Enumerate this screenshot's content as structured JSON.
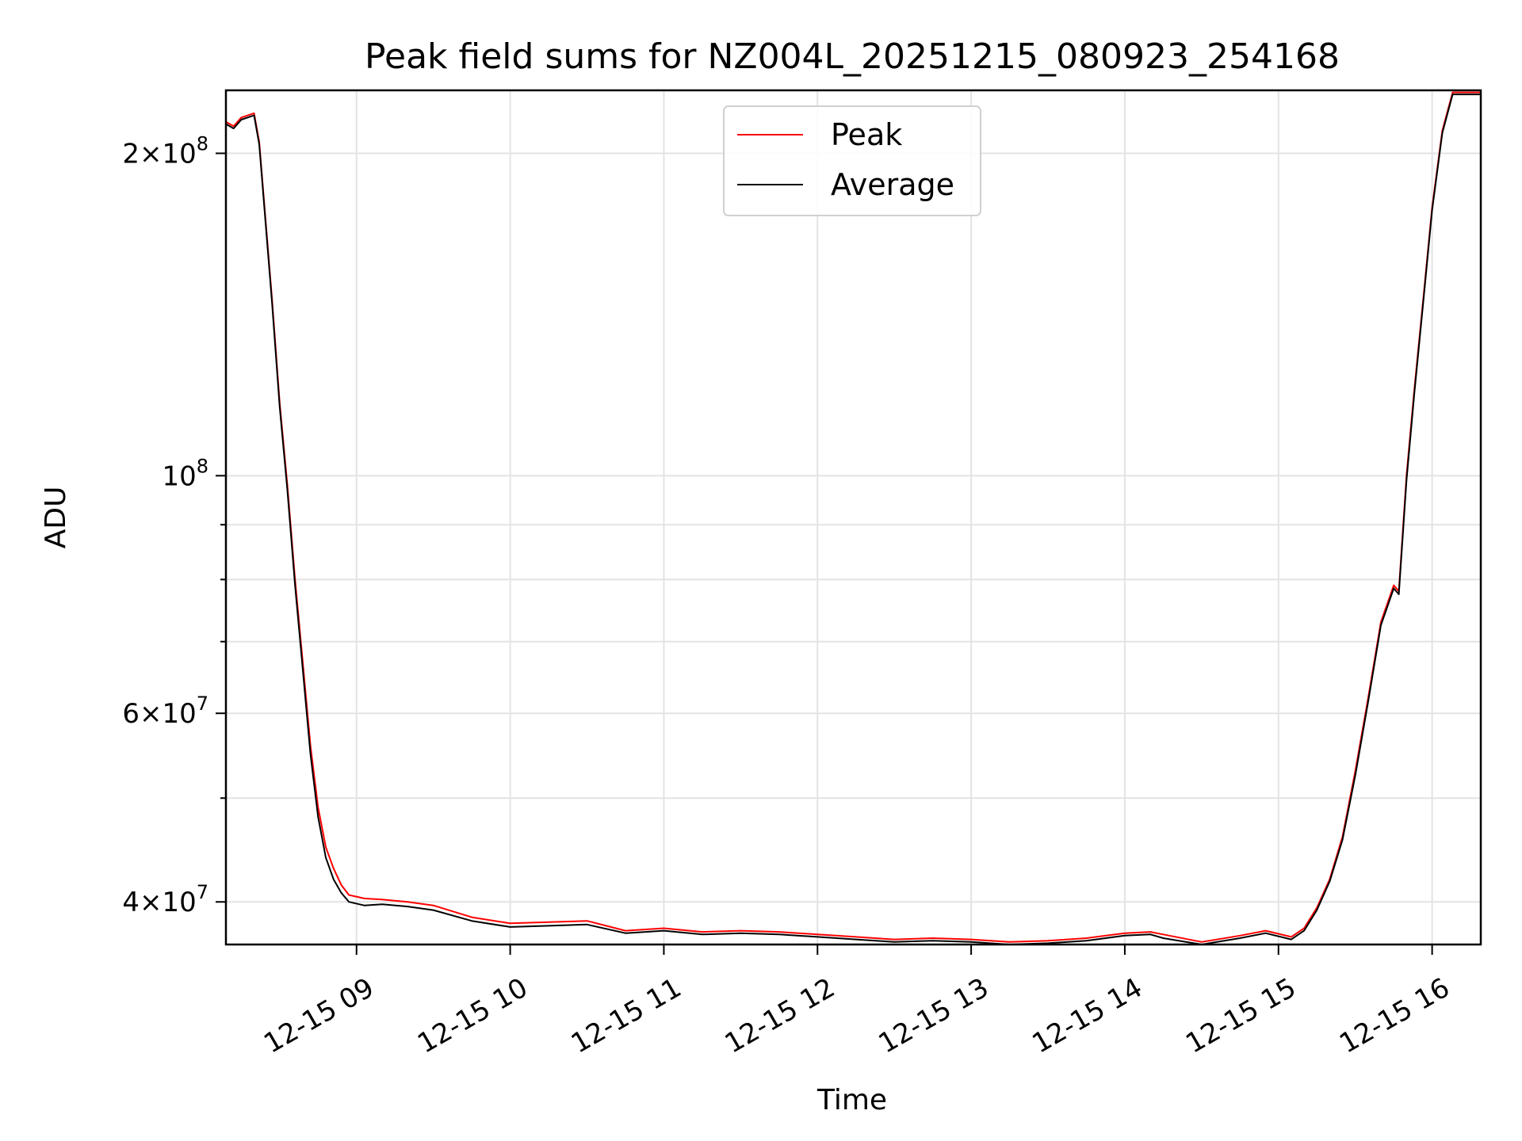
{
  "chart_data": {
    "type": "line",
    "title": "Peak field sums for NZ004L_20251215_080923_254168",
    "xlabel": "Time",
    "ylabel": "ADU",
    "yscale": "log",
    "grid": true,
    "legend_position": "upper-center",
    "xlim": [
      "2025-12-15 08:09",
      "2025-12-15 16:19"
    ],
    "ylim": [
      36500000,
      229000000
    ],
    "x_ticks": [
      {
        "value": "2025-12-15 09:00",
        "label": "12-15 09"
      },
      {
        "value": "2025-12-15 10:00",
        "label": "12-15 10"
      },
      {
        "value": "2025-12-15 11:00",
        "label": "12-15 11"
      },
      {
        "value": "2025-12-15 12:00",
        "label": "12-15 12"
      },
      {
        "value": "2025-12-15 13:00",
        "label": "12-15 13"
      },
      {
        "value": "2025-12-15 14:00",
        "label": "12-15 14"
      },
      {
        "value": "2025-12-15 15:00",
        "label": "12-15 15"
      },
      {
        "value": "2025-12-15 16:00",
        "label": "12-15 16"
      }
    ],
    "y_major_ticks": [
      {
        "value": 40000000,
        "coef": "4",
        "exp": "7"
      },
      {
        "value": 60000000,
        "coef": "6",
        "exp": "7"
      },
      {
        "value": 100000000,
        "coef": "",
        "exp": "8"
      },
      {
        "value": 200000000,
        "coef": "2",
        "exp": "8"
      }
    ],
    "y_minor_ticks": [
      50000000,
      70000000,
      80000000,
      90000000
    ],
    "series": [
      {
        "name": "Peak",
        "color": "#ff0000",
        "x": [
          "2025-12-15 08:09",
          "2025-12-15 08:12",
          "2025-12-15 08:15",
          "2025-12-15 08:20",
          "2025-12-15 08:22",
          "2025-12-15 08:27",
          "2025-12-15 08:30",
          "2025-12-15 08:33",
          "2025-12-15 08:36",
          "2025-12-15 08:39",
          "2025-12-15 08:42",
          "2025-12-15 08:45",
          "2025-12-15 08:48",
          "2025-12-15 08:51",
          "2025-12-15 08:54",
          "2025-12-15 08:57",
          "2025-12-15 09:03",
          "2025-12-15 09:10",
          "2025-12-15 09:20",
          "2025-12-15 09:30",
          "2025-12-15 09:45",
          "2025-12-15 10:00",
          "2025-12-15 10:15",
          "2025-12-15 10:30",
          "2025-12-15 10:45",
          "2025-12-15 11:00",
          "2025-12-15 11:15",
          "2025-12-15 11:30",
          "2025-12-15 11:45",
          "2025-12-15 12:00",
          "2025-12-15 12:15",
          "2025-12-15 12:30",
          "2025-12-15 12:45",
          "2025-12-15 13:00",
          "2025-12-15 13:15",
          "2025-12-15 13:30",
          "2025-12-15 13:45",
          "2025-12-15 14:00",
          "2025-12-15 14:10",
          "2025-12-15 14:15",
          "2025-12-15 14:30",
          "2025-12-15 14:45",
          "2025-12-15 14:55",
          "2025-12-15 15:05",
          "2025-12-15 15:10",
          "2025-12-15 15:15",
          "2025-12-15 15:20",
          "2025-12-15 15:25",
          "2025-12-15 15:30",
          "2025-12-15 15:35",
          "2025-12-15 15:40",
          "2025-12-15 15:45",
          "2025-12-15 15:47",
          "2025-12-15 15:50",
          "2025-12-15 15:53",
          "2025-12-15 15:57",
          "2025-12-15 16:00",
          "2025-12-15 16:04",
          "2025-12-15 16:08",
          "2025-12-15 16:19"
        ],
        "values": [
          214000000,
          212000000,
          216000000,
          218000000,
          205000000,
          146000000,
          117000000,
          98000000,
          80000000,
          67000000,
          56000000,
          49000000,
          45000000,
          43000000,
          41500000,
          40600000,
          40300000,
          40200000,
          40000000,
          39700000,
          38700000,
          38200000,
          38300000,
          38400000,
          37600000,
          37800000,
          37500000,
          37600000,
          37500000,
          37300000,
          37100000,
          36900000,
          37000000,
          36900000,
          36700000,
          36800000,
          37000000,
          37400000,
          37500000,
          37300000,
          36700000,
          37200000,
          37600000,
          37100000,
          37800000,
          39500000,
          42000000,
          46000000,
          53000000,
          62000000,
          73000000,
          79000000,
          78000000,
          100000000,
          120000000,
          150000000,
          178000000,
          210000000,
          228000000,
          228000000
        ]
      },
      {
        "name": "Average",
        "color": "#000000",
        "x": [
          "2025-12-15 08:09",
          "2025-12-15 08:12",
          "2025-12-15 08:15",
          "2025-12-15 08:20",
          "2025-12-15 08:22",
          "2025-12-15 08:27",
          "2025-12-15 08:30",
          "2025-12-15 08:33",
          "2025-12-15 08:36",
          "2025-12-15 08:39",
          "2025-12-15 08:42",
          "2025-12-15 08:45",
          "2025-12-15 08:48",
          "2025-12-15 08:51",
          "2025-12-15 08:54",
          "2025-12-15 08:57",
          "2025-12-15 09:03",
          "2025-12-15 09:10",
          "2025-12-15 09:20",
          "2025-12-15 09:30",
          "2025-12-15 09:45",
          "2025-12-15 10:00",
          "2025-12-15 10:15",
          "2025-12-15 10:30",
          "2025-12-15 10:45",
          "2025-12-15 11:00",
          "2025-12-15 11:15",
          "2025-12-15 11:30",
          "2025-12-15 11:45",
          "2025-12-15 12:00",
          "2025-12-15 12:15",
          "2025-12-15 12:30",
          "2025-12-15 12:45",
          "2025-12-15 13:00",
          "2025-12-15 13:15",
          "2025-12-15 13:30",
          "2025-12-15 13:45",
          "2025-12-15 14:00",
          "2025-12-15 14:10",
          "2025-12-15 14:15",
          "2025-12-15 14:30",
          "2025-12-15 14:45",
          "2025-12-15 14:55",
          "2025-12-15 15:05",
          "2025-12-15 15:10",
          "2025-12-15 15:15",
          "2025-12-15 15:20",
          "2025-12-15 15:25",
          "2025-12-15 15:30",
          "2025-12-15 15:35",
          "2025-12-15 15:40",
          "2025-12-15 15:45",
          "2025-12-15 15:47",
          "2025-12-15 15:50",
          "2025-12-15 15:53",
          "2025-12-15 15:57",
          "2025-12-15 16:00",
          "2025-12-15 16:04",
          "2025-12-15 16:08",
          "2025-12-15 16:19"
        ],
        "values": [
          213000000,
          211000000,
          215000000,
          217000000,
          204000000,
          145000000,
          116000000,
          97000000,
          79000000,
          66000000,
          55000000,
          48000000,
          44000000,
          42000000,
          40800000,
          40000000,
          39700000,
          39800000,
          39600000,
          39300000,
          38400000,
          37900000,
          38000000,
          38100000,
          37400000,
          37600000,
          37300000,
          37400000,
          37300000,
          37100000,
          36900000,
          36700000,
          36800000,
          36700000,
          36500000,
          36600000,
          36800000,
          37200000,
          37300000,
          37000000,
          36500000,
          37000000,
          37400000,
          36900000,
          37600000,
          39300000,
          41800000,
          45700000,
          52500000,
          61500000,
          72500000,
          78500000,
          77500000,
          99000000,
          119000000,
          149000000,
          177000000,
          209000000,
          227000000,
          227000000
        ]
      }
    ]
  }
}
